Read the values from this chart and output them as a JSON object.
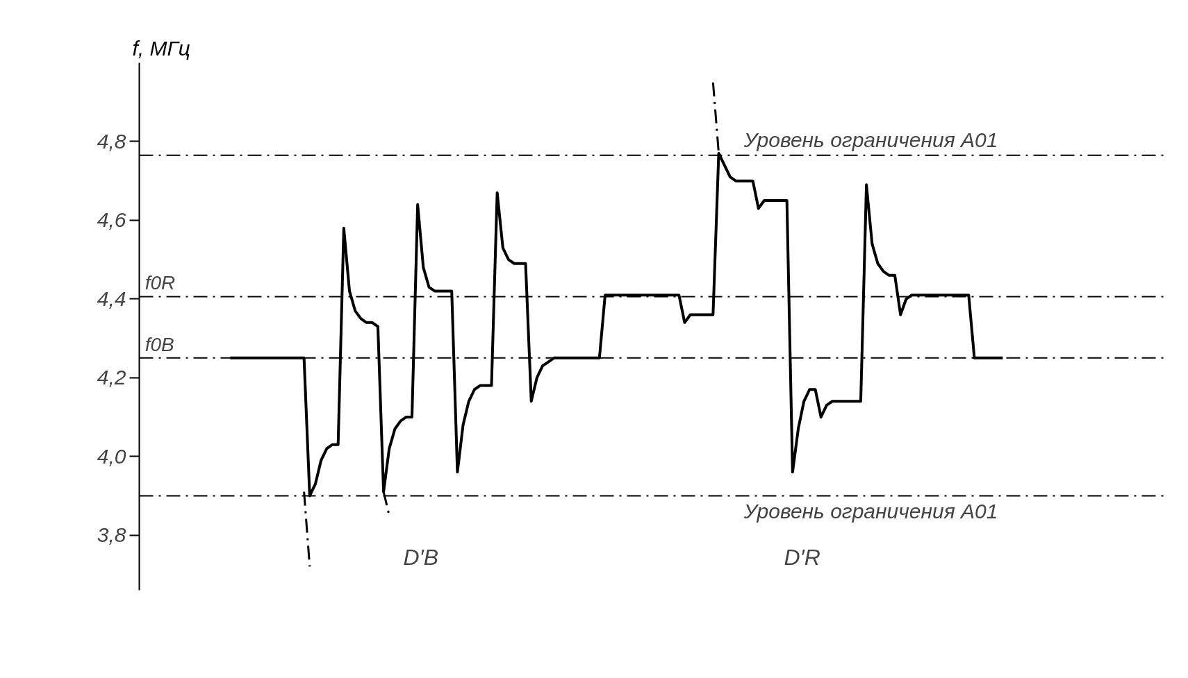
{
  "chart_data": {
    "type": "line",
    "ylabel": "f, МГц",
    "categories": [
      null,
      null,
      null,
      null,
      null,
      null,
      null,
      null,
      null,
      null,
      null,
      null,
      null,
      null,
      null,
      null,
      null,
      null,
      null,
      null,
      null,
      null,
      null,
      null,
      null,
      null,
      null,
      null,
      null,
      null,
      null,
      null,
      null,
      null,
      null,
      null,
      null,
      null,
      null,
      null,
      null,
      null,
      null,
      null,
      null,
      null,
      null,
      null,
      null,
      null,
      null,
      null,
      null,
      null,
      null,
      null,
      null,
      null,
      null,
      null,
      null,
      null,
      null,
      null,
      null,
      null,
      null,
      null,
      null,
      null,
      null,
      null,
      null,
      null,
      null,
      null,
      null,
      null,
      null,
      null,
      null,
      null,
      null,
      null,
      null,
      null,
      null,
      null,
      null,
      null,
      null,
      null,
      null,
      null,
      null,
      null,
      null,
      null,
      null,
      null,
      null,
      null,
      null,
      null,
      null,
      null,
      null,
      null,
      null,
      null,
      null,
      null,
      null,
      null,
      null,
      null,
      null,
      null,
      null,
      null,
      null,
      null,
      null,
      null,
      null,
      null,
      null,
      null,
      null,
      null,
      null,
      null,
      null,
      null,
      null,
      null,
      null
    ],
    "series": [
      {
        "color": "#000000",
        "line_style": "solid",
        "values": [
          4.25,
          4.25,
          4.25,
          4.25,
          4.25,
          4.25,
          4.25,
          4.25,
          4.25,
          4.25,
          4.25,
          4.25,
          4.25,
          4.25,
          3.9,
          3.93,
          3.99,
          4.02,
          4.03,
          4.03,
          4.58,
          4.42,
          4.37,
          4.35,
          4.34,
          4.34,
          4.33,
          3.91,
          4.02,
          4.07,
          4.09,
          4.1,
          4.1,
          4.64,
          4.48,
          4.43,
          4.42,
          4.42,
          4.42,
          4.42,
          3.96,
          4.08,
          4.14,
          4.17,
          4.18,
          4.18,
          4.18,
          4.67,
          4.53,
          4.5,
          4.49,
          4.49,
          4.49,
          4.14,
          4.2,
          4.23,
          4.24,
          4.25,
          4.25,
          4.25,
          4.25,
          4.25,
          4.25,
          4.25,
          4.25,
          4.25,
          4.41,
          4.41,
          4.41,
          4.41,
          4.41,
          4.41,
          4.41,
          4.41,
          4.41,
          4.41,
          4.41,
          4.41,
          4.41,
          4.41,
          4.34,
          4.36,
          4.36,
          4.36,
          4.36,
          4.36,
          4.77,
          4.74,
          4.71,
          4.7,
          4.7,
          4.7,
          4.7,
          4.63,
          4.65,
          4.65,
          4.65,
          4.65,
          4.65,
          3.96,
          4.07,
          4.14,
          4.17,
          4.17,
          4.1,
          4.13,
          4.14,
          4.14,
          4.14,
          4.14,
          4.14,
          4.14,
          4.69,
          4.54,
          4.49,
          4.47,
          4.46,
          4.46,
          4.36,
          4.4,
          4.41,
          4.41,
          4.41,
          4.41,
          4.41,
          4.41,
          4.41,
          4.41,
          4.41,
          4.41,
          4.41,
          4.25,
          4.25,
          4.25,
          4.25,
          4.25,
          4.25
        ]
      },
      {
        "color": "#000000",
        "line_style": "dashed",
        "values": [
          null,
          null,
          null,
          null,
          null,
          null,
          null,
          null,
          null,
          null,
          null,
          null,
          null,
          3.91,
          3.72,
          null,
          null,
          null,
          null,
          null,
          null,
          null,
          null,
          null,
          null,
          null,
          null,
          3.91,
          3.85,
          null,
          null,
          null,
          null,
          null,
          null,
          null,
          null,
          null,
          null,
          null,
          null,
          null,
          null,
          null,
          null,
          null,
          null,
          null,
          null,
          null,
          null,
          null,
          null,
          null,
          null,
          null,
          null,
          null,
          null,
          null,
          null,
          null,
          null,
          null,
          null,
          null,
          null,
          null,
          null,
          null,
          null,
          null,
          null,
          null,
          null,
          null,
          null,
          null,
          null,
          null,
          null,
          null,
          null,
          null,
          null,
          4.95,
          4.77,
          null,
          null,
          null,
          null,
          null,
          null,
          null,
          null,
          null,
          null,
          null,
          null,
          null,
          null,
          null,
          null,
          null,
          null,
          null,
          null,
          null,
          null,
          null,
          null,
          null,
          null,
          null,
          null,
          null,
          null,
          null,
          null,
          null,
          null,
          null,
          null,
          null,
          null,
          null,
          null,
          null,
          null,
          null,
          null,
          null,
          null,
          null,
          null,
          null,
          null
        ]
      }
    ],
    "ylim": [
      3.66,
      5.0
    ],
    "yticks": [
      {
        "value": 3.8,
        "label": "3,8"
      },
      {
        "value": 4.0,
        "label": "4,0"
      },
      {
        "value": 4.2,
        "label": "4,2"
      },
      {
        "value": 4.4,
        "label": "4,4"
      },
      {
        "value": 4.6,
        "label": "4,6"
      },
      {
        "value": 4.8,
        "label": "4,8"
      }
    ],
    "tick_labels": "y",
    "grid": false,
    "ref_lines": [
      {
        "axis": "y",
        "value": 4.765,
        "label": "Уровень ограничения А01",
        "line_style": "dashed",
        "color": "#000000"
      },
      {
        "axis": "y",
        "value": 4.406,
        "label": "f0R",
        "line_style": "dashed",
        "color": "#000000"
      },
      {
        "axis": "y",
        "value": 4.25,
        "label": "f0B",
        "line_style": "dashed",
        "color": "#000000"
      },
      {
        "axis": "y",
        "value": 3.9,
        "label": "Уровень ограничения А01",
        "line_style": "dashed",
        "color": "#000000"
      }
    ],
    "annotations": [
      "D′B",
      "D′R"
    ]
  }
}
